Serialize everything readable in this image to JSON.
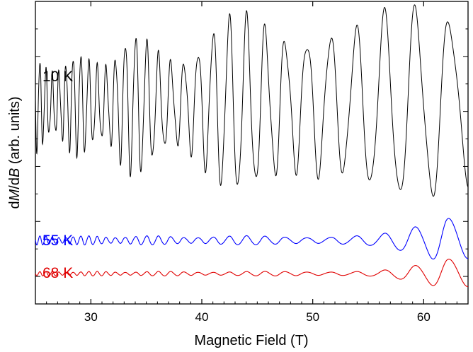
{
  "chart_data": {
    "type": "line",
    "xlabel": "Magnetic Field (T)",
    "ylabel_parts": [
      "d",
      "M",
      "/d",
      "B",
      " (arb. units)"
    ],
    "xlim": [
      25,
      64
    ],
    "x_ticks": [
      30,
      40,
      50,
      60
    ],
    "y_tick_labels": "none",
    "grid": false,
    "legend": "inline labels",
    "series": [
      {
        "name": "10 K",
        "color": "#000000",
        "baseline": 0.66,
        "envelope": [
          [
            25,
            0.13
          ],
          [
            30,
            0.14
          ],
          [
            33,
            0.2
          ],
          [
            36,
            0.17
          ],
          [
            40,
            0.2
          ],
          [
            44,
            0.26
          ],
          [
            47,
            0.3
          ],
          [
            50,
            0.27
          ],
          [
            53,
            0.2
          ],
          [
            56,
            0.24
          ],
          [
            59,
            0.3
          ],
          [
            62,
            0.35
          ],
          [
            64,
            0.33
          ]
        ],
        "freq_T": [
          [
            25,
            1.5
          ],
          [
            64,
            0.26
          ]
        ]
      },
      {
        "name": "55 K",
        "color": "#0000ff",
        "baseline": 0.21,
        "envelope": [
          [
            25,
            0.012
          ],
          [
            50,
            0.012
          ],
          [
            56,
            0.016
          ],
          [
            60,
            0.04
          ],
          [
            62,
            0.07
          ],
          [
            64,
            0.06
          ]
        ],
        "freq_T": [
          [
            25,
            1.5
          ],
          [
            64,
            0.26
          ]
        ]
      },
      {
        "name": "68 K",
        "color": "#e00000",
        "baseline": 0.1,
        "envelope": [
          [
            25,
            0.006
          ],
          [
            50,
            0.006
          ],
          [
            56,
            0.01
          ],
          [
            60,
            0.025
          ],
          [
            62,
            0.04
          ],
          [
            64,
            0.035
          ]
        ],
        "freq_T": [
          [
            25,
            1.5
          ],
          [
            64,
            0.26
          ]
        ]
      }
    ]
  }
}
